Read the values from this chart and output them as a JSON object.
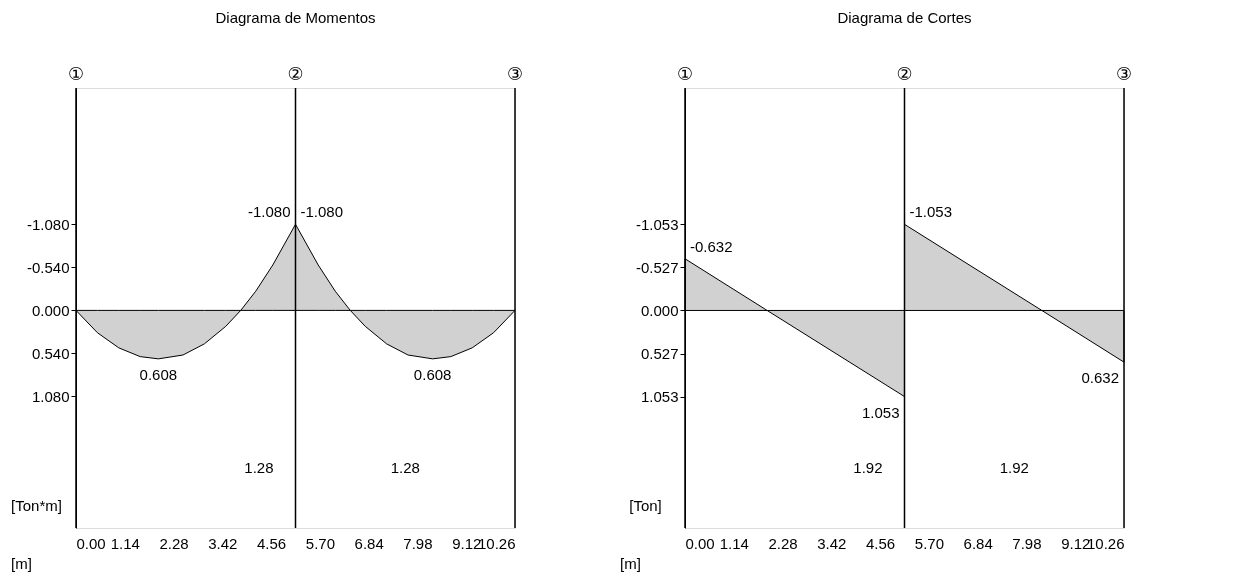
{
  "chart_data": [
    {
      "type": "area",
      "title": "Diagrama de Momentos",
      "xlabel": "[m]",
      "ylabel": "[Ton*m]",
      "x": [
        0,
        0.5,
        1,
        1.5,
        1.925,
        2.5,
        3,
        3.5,
        3.85,
        4.2,
        4.6,
        5.13,
        5.13,
        5.66,
        6.06,
        6.41,
        6.76,
        7.26,
        7.76,
        8.335,
        8.76,
        9.26,
        9.76,
        10.26
      ],
      "series": [
        {
          "color": "#000000",
          "values": [
            0,
            0.28,
            0.47,
            0.58,
            0.608,
            0.56,
            0.42,
            0.2,
            0,
            -0.24,
            -0.57,
            -1.08,
            -1.08,
            -0.57,
            -0.24,
            0,
            0.2,
            0.42,
            0.56,
            0.608,
            0.58,
            0.47,
            0.28,
            0
          ],
          "value_labels": [
            null,
            null,
            null,
            null,
            "0.608",
            null,
            null,
            null,
            null,
            null,
            null,
            "-1.080",
            "-1.080",
            null,
            null,
            null,
            null,
            null,
            null,
            "0.608",
            null,
            null,
            null,
            null
          ]
        }
      ],
      "xlim": [
        0,
        10.26
      ],
      "xticks": [
        {
          "value": 0,
          "label": "0.00"
        },
        {
          "value": 1.14,
          "label": "1.14"
        },
        {
          "value": 2.28,
          "label": "2.28"
        },
        {
          "value": 3.42,
          "label": "3.42"
        },
        {
          "value": 4.56,
          "label": "4.56"
        },
        {
          "value": 5.7,
          "label": "5.70"
        },
        {
          "value": 6.84,
          "label": "6.84"
        },
        {
          "value": 7.98,
          "label": "7.98"
        },
        {
          "value": 9.12,
          "label": "9.12"
        },
        {
          "value": 10.26,
          "label": "10.26"
        }
      ],
      "ylim": [
        2.73,
        -2.79
      ],
      "yticks": [
        {
          "value": -1.08,
          "label": "-1.080"
        },
        {
          "value": -0.54,
          "label": "-0.540"
        },
        {
          "value": 0,
          "label": "0.000"
        },
        {
          "value": 0.54,
          "label": "0.540"
        },
        {
          "value": 1.08,
          "label": "1.080"
        }
      ],
      "ref_lines": [
        {
          "axis": "x",
          "value": 0,
          "label": "①",
          "color": "#000000"
        },
        {
          "axis": "x",
          "value": 5.13,
          "label": "②",
          "color": "#000000"
        },
        {
          "axis": "x",
          "value": 10.26,
          "label": "③",
          "color": "#000000"
        }
      ],
      "annotations": [
        "1.28",
        "1.28"
      ],
      "grid": false
    },
    {
      "type": "area",
      "title": "Diagrama de Cortes",
      "xlabel": "[m]",
      "ylabel": "[Ton]",
      "x": [
        0,
        1.92,
        5.13,
        5.13,
        8.34,
        10.26
      ],
      "series": [
        {
          "color": "#000000",
          "values": [
            -0.632,
            0,
            1.053,
            -1.053,
            0,
            0.632
          ],
          "value_labels": [
            "-0.632",
            null,
            "1.053",
            "-1.053",
            null,
            "0.632"
          ]
        }
      ],
      "xlim": [
        0,
        10.26
      ],
      "xticks": [
        {
          "value": 0,
          "label": "0.00"
        },
        {
          "value": 1.14,
          "label": "1.14"
        },
        {
          "value": 2.28,
          "label": "2.28"
        },
        {
          "value": 3.42,
          "label": "3.42"
        },
        {
          "value": 4.56,
          "label": "4.56"
        },
        {
          "value": 5.7,
          "label": "5.70"
        },
        {
          "value": 6.84,
          "label": "6.84"
        },
        {
          "value": 7.98,
          "label": "7.98"
        },
        {
          "value": 9.12,
          "label": "9.12"
        },
        {
          "value": 10.26,
          "label": "10.26"
        }
      ],
      "ylim": [
        2.66,
        -2.72
      ],
      "yticks": [
        {
          "value": -1.053,
          "label": "-1.053"
        },
        {
          "value": -0.527,
          "label": "-0.527"
        },
        {
          "value": 0,
          "label": "0.000"
        },
        {
          "value": 0.527,
          "label": "0.527"
        },
        {
          "value": 1.053,
          "label": "1.053"
        }
      ],
      "ref_lines": [
        {
          "axis": "x",
          "value": 0,
          "label": "①",
          "color": "#000000"
        },
        {
          "axis": "x",
          "value": 5.13,
          "label": "②",
          "color": "#000000"
        },
        {
          "axis": "x",
          "value": 10.26,
          "label": "③",
          "color": "#000000"
        }
      ],
      "annotations": [
        "1.92",
        "1.92"
      ],
      "grid": false
    }
  ]
}
